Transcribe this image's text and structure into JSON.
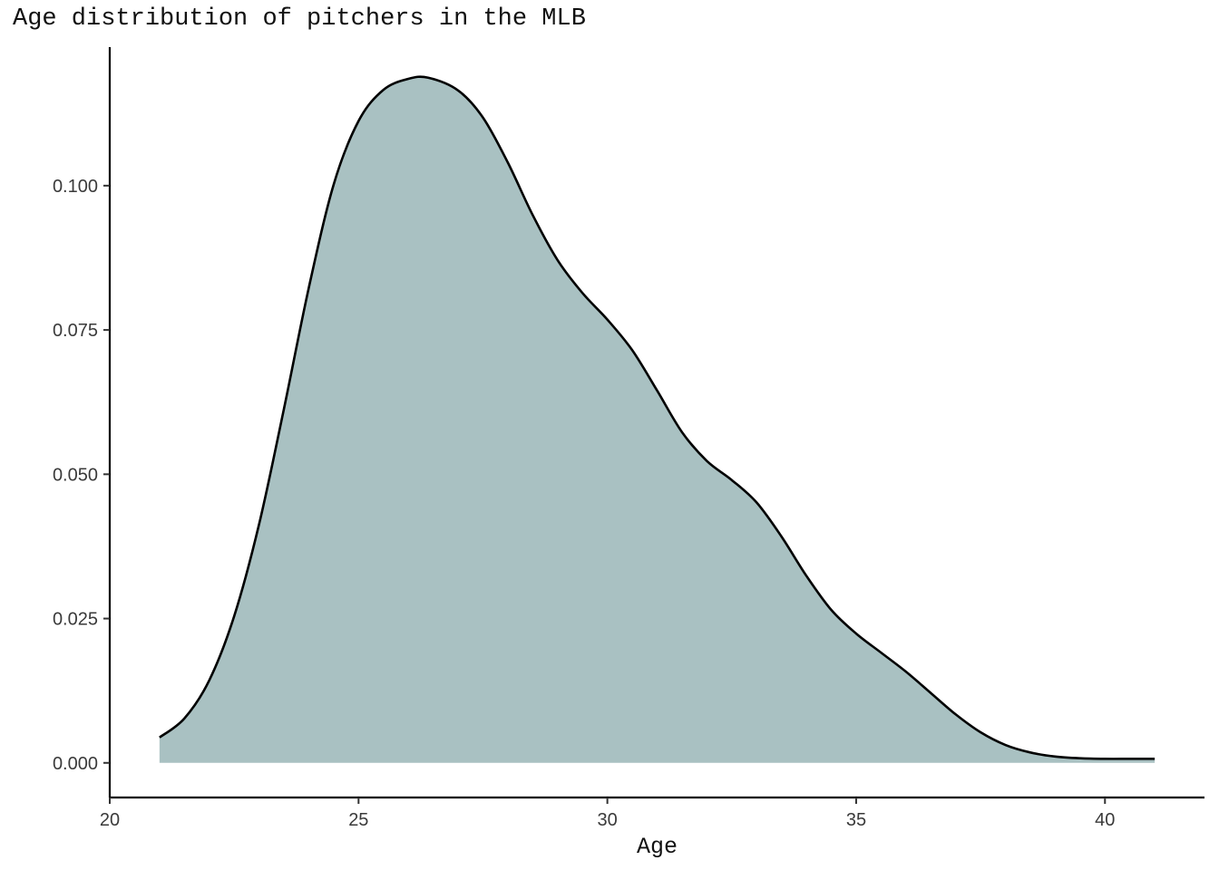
{
  "chart_data": {
    "type": "area",
    "title": "Age distribution of pitchers in the MLB",
    "xlabel": "Age",
    "ylabel": "",
    "xlim": [
      20,
      42
    ],
    "ylim": [
      -0.006,
      0.124
    ],
    "xticks": [
      20,
      25,
      30,
      35,
      40
    ],
    "yticks": [
      0.0,
      0.025,
      0.05,
      0.075,
      0.1
    ],
    "ytick_labels": [
      "0.000",
      "0.025",
      "0.050",
      "0.075",
      "0.100"
    ],
    "grid": false,
    "fill_color": "#a9c1c2",
    "line_color": "#000000",
    "series": [
      {
        "x": [
          21.0,
          21.5,
          22.0,
          22.5,
          23.0,
          23.5,
          24.0,
          24.5,
          25.0,
          25.5,
          26.0,
          26.4,
          27.0,
          27.5,
          28.0,
          28.5,
          29.0,
          29.5,
          30.0,
          30.5,
          31.0,
          31.5,
          32.0,
          32.5,
          33.0,
          33.5,
          34.0,
          34.5,
          35.0,
          35.5,
          36.0,
          36.5,
          37.0,
          37.5,
          38.0,
          38.5,
          39.0,
          39.5,
          40.0,
          40.5,
          41.0
        ],
        "y": [
          0.0044,
          0.0077,
          0.0143,
          0.0254,
          0.0413,
          0.0613,
          0.0823,
          0.1002,
          0.1112,
          0.1166,
          0.1185,
          0.1187,
          0.1165,
          0.1118,
          0.104,
          0.0949,
          0.0871,
          0.0814,
          0.0768,
          0.0715,
          0.0645,
          0.0573,
          0.0523,
          0.049,
          0.0451,
          0.0392,
          0.0324,
          0.0265,
          0.0224,
          0.0191,
          0.0158,
          0.0121,
          0.0084,
          0.0053,
          0.0031,
          0.0018,
          0.0011,
          0.0008,
          0.0007,
          0.0007,
          0.0007
        ]
      }
    ]
  }
}
